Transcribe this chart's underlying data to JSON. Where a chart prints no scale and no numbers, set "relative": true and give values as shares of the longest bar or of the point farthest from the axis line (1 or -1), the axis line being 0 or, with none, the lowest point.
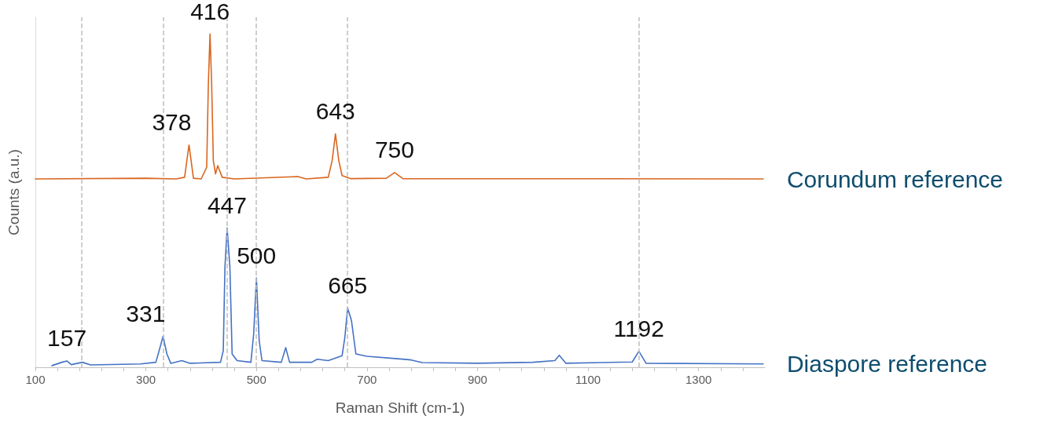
{
  "chart_data": {
    "type": "line",
    "relative": true,
    "xlabel": "Raman Shift (cm-1)",
    "ylabel": "Counts (a.u.)",
    "xlim": [
      100,
      1420
    ],
    "xticks": [
      100,
      {
        "value": 140,
        "label": null
      },
      {
        "value": 180,
        "label": null
      },
      {
        "value": 220,
        "label": null
      },
      {
        "value": 260,
        "label": null
      },
      300,
      {
        "value": 340,
        "label": null
      },
      {
        "value": 380,
        "label": null
      },
      {
        "value": 420,
        "label": null
      },
      {
        "value": 460,
        "label": null
      },
      500,
      {
        "value": 540,
        "label": null
      },
      {
        "value": 580,
        "label": null
      },
      {
        "value": 620,
        "label": null
      },
      {
        "value": 660,
        "label": null
      },
      700,
      {
        "value": 740,
        "label": null
      },
      {
        "value": 780,
        "label": null
      },
      {
        "value": 820,
        "label": null
      },
      {
        "value": 860,
        "label": null
      },
      900,
      {
        "value": 940,
        "label": null
      },
      {
        "value": 980,
        "label": null
      },
      {
        "value": 1020,
        "label": null
      },
      {
        "value": 1060,
        "label": null
      },
      1100,
      {
        "value": 1140,
        "label": null
      },
      {
        "value": 1180,
        "label": null
      },
      {
        "value": 1220,
        "label": null
      },
      {
        "value": 1260,
        "label": null
      },
      1300,
      {
        "value": 1340,
        "label": null
      },
      {
        "value": 1380,
        "label": null
      }
    ],
    "grid": false,
    "marker": "none",
    "line_style": "solid",
    "series": [
      {
        "name": "Corundum reference",
        "color": "#d9661f",
        "x": [
          100,
          300,
          355,
          370,
          378,
          386,
          400,
          410,
          413,
          416,
          419,
          422,
          426,
          430,
          438,
          460,
          575,
          590,
          630,
          637,
          643,
          649,
          655,
          670,
          735,
          750,
          765,
          1417
        ],
        "values": [
          0.565,
          0.567,
          0.565,
          0.57,
          0.667,
          0.567,
          0.565,
          0.6,
          0.85,
          1.0,
          0.85,
          0.62,
          0.58,
          0.605,
          0.57,
          0.565,
          0.572,
          0.565,
          0.57,
          0.62,
          0.7,
          0.62,
          0.575,
          0.566,
          0.567,
          0.584,
          0.566,
          0.565
        ]
      },
      {
        "name": "Diaspore reference",
        "color": "#4472c4",
        "x": [
          130,
          148,
          157,
          165,
          185,
          200,
          290,
          318,
          324,
          331,
          338,
          345,
          365,
          380,
          435,
          440,
          443,
          447,
          452,
          456,
          465,
          490,
          495,
          500,
          505,
          510,
          545,
          553,
          560,
          600,
          610,
          630,
          655,
          660,
          665,
          672,
          680,
          700,
          760,
          780,
          800,
          900,
          1000,
          1040,
          1048,
          1060,
          1180,
          1192,
          1205,
          1417
        ],
        "values": [
          0.005,
          0.015,
          0.019,
          0.008,
          0.015,
          0.007,
          0.01,
          0.015,
          0.05,
          0.093,
          0.04,
          0.012,
          0.02,
          0.012,
          0.015,
          0.05,
          0.3,
          0.418,
          0.3,
          0.04,
          0.02,
          0.015,
          0.1,
          0.268,
          0.08,
          0.02,
          0.015,
          0.059,
          0.015,
          0.015,
          0.024,
          0.02,
          0.035,
          0.09,
          0.178,
          0.14,
          0.04,
          0.033,
          0.025,
          0.022,
          0.014,
          0.012,
          0.015,
          0.02,
          0.036,
          0.012,
          0.016,
          0.048,
          0.012,
          0.01
        ]
      }
    ],
    "ref_lines": [
      {
        "axis": "x",
        "value": 184,
        "color": "#bfbfbf",
        "line_style": "dashed"
      },
      {
        "axis": "x",
        "value": 331,
        "color": "#bfbfbf",
        "line_style": "dashed"
      },
      {
        "axis": "x",
        "value": 447,
        "color": "#bfbfbf",
        "line_style": "dashed"
      },
      {
        "axis": "x",
        "value": 500,
        "color": "#bfbfbf",
        "line_style": "dashed"
      },
      {
        "axis": "x",
        "value": 665,
        "color": "#bfbfbf",
        "line_style": "dashed"
      },
      {
        "axis": "x",
        "value": 1192,
        "color": "#bfbfbf",
        "line_style": "dashed"
      }
    ],
    "annotations": [
      {
        "text": "416",
        "x": 416,
        "y": 1.0
      },
      {
        "text": "378",
        "x": 378,
        "y": 0.667
      },
      {
        "text": "643",
        "x": 643,
        "y": 0.7
      },
      {
        "text": "750",
        "x": 750,
        "y": 0.584
      },
      {
        "text": "447",
        "x": 447,
        "y": 0.418
      },
      {
        "text": "500",
        "x": 500,
        "y": 0.268
      },
      {
        "text": "331",
        "x": 331,
        "y": 0.093
      },
      {
        "text": "157",
        "x": 157,
        "y": 0.019
      },
      {
        "text": "665",
        "x": 665,
        "y": 0.178
      },
      {
        "text": "1192",
        "x": 1192,
        "y": 0.048
      }
    ]
  }
}
